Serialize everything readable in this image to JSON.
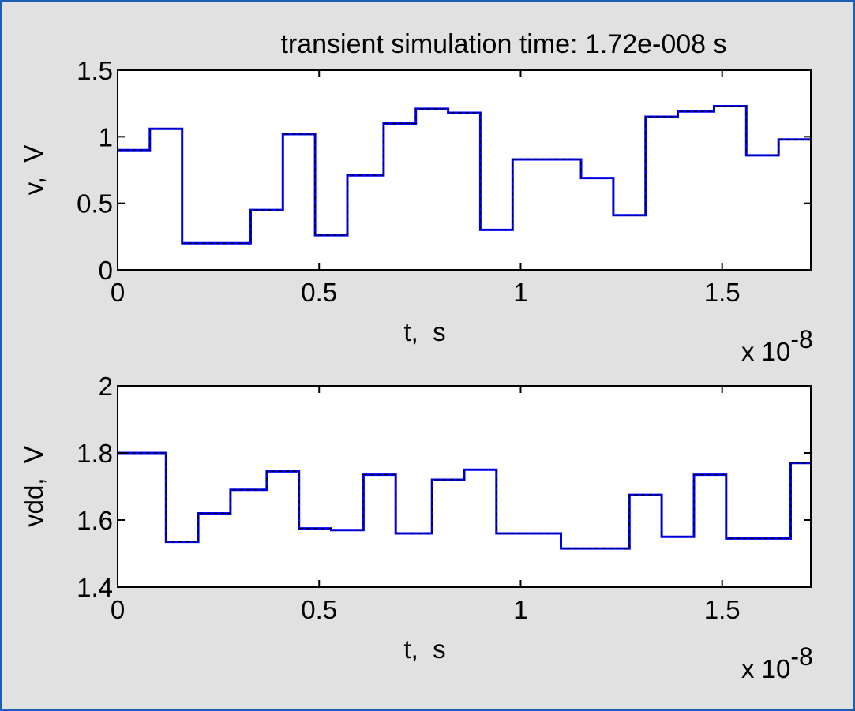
{
  "title": "transient simulation time: 1.72e-008 s",
  "colors": {
    "background": "#e1e1e1",
    "frame": "#1a5fb4",
    "trace_solid": "#0000ff",
    "trace_dashed": "#000000",
    "axes": "#000000"
  },
  "chart_data": [
    {
      "type": "line",
      "xlabel": "t,  s",
      "ylabel": "v,  V",
      "x_multiplier": {
        "base": "x 10",
        "exponent": "-8"
      },
      "xlim": [
        0,
        1.72
      ],
      "ylim": [
        0,
        1.5
      ],
      "xticks": [
        "0",
        "0.5",
        "1",
        "1.5"
      ],
      "xtick_values": [
        0,
        0.5,
        1,
        1.5
      ],
      "yticks": [
        "0",
        "0.5",
        "1",
        "1.5"
      ],
      "ytick_values": [
        0,
        0.5,
        1,
        1.5
      ],
      "grid": false,
      "segments": [
        {
          "t0": 0.0,
          "t1": 0.08,
          "v": 0.9
        },
        {
          "t0": 0.08,
          "t1": 0.16,
          "v": 1.06
        },
        {
          "t0": 0.16,
          "t1": 0.33,
          "v": 0.2
        },
        {
          "t0": 0.33,
          "t1": 0.41,
          "v": 0.45
        },
        {
          "t0": 0.41,
          "t1": 0.49,
          "v": 1.02
        },
        {
          "t0": 0.49,
          "t1": 0.57,
          "v": 0.26
        },
        {
          "t0": 0.57,
          "t1": 0.66,
          "v": 0.71
        },
        {
          "t0": 0.66,
          "t1": 0.74,
          "v": 1.1
        },
        {
          "t0": 0.74,
          "t1": 0.82,
          "v": 1.21
        },
        {
          "t0": 0.82,
          "t1": 0.9,
          "v": 1.18
        },
        {
          "t0": 0.9,
          "t1": 0.98,
          "v": 0.3
        },
        {
          "t0": 0.98,
          "t1": 1.15,
          "v": 0.83
        },
        {
          "t0": 1.15,
          "t1": 1.23,
          "v": 0.69
        },
        {
          "t0": 1.23,
          "t1": 1.31,
          "v": 0.41
        },
        {
          "t0": 1.31,
          "t1": 1.39,
          "v": 1.15
        },
        {
          "t0": 1.39,
          "t1": 1.48,
          "v": 1.19
        },
        {
          "t0": 1.48,
          "t1": 1.56,
          "v": 1.23
        },
        {
          "t0": 1.56,
          "t1": 1.64,
          "v": 0.86
        },
        {
          "t0": 1.64,
          "t1": 1.72,
          "v": 0.98
        }
      ]
    },
    {
      "type": "line",
      "xlabel": "t,  s",
      "ylabel": "vdd,  V",
      "x_multiplier": {
        "base": "x 10",
        "exponent": "-8"
      },
      "xlim": [
        0,
        1.72
      ],
      "ylim": [
        1.4,
        2.0
      ],
      "xticks": [
        "0",
        "0.5",
        "1",
        "1.5"
      ],
      "xtick_values": [
        0,
        0.5,
        1,
        1.5
      ],
      "yticks": [
        "1.4",
        "1.6",
        "1.8",
        "2"
      ],
      "ytick_values": [
        1.4,
        1.6,
        1.8,
        2.0
      ],
      "grid": false,
      "segments": [
        {
          "t0": 0.0,
          "t1": 0.12,
          "v": 1.8
        },
        {
          "t0": 0.12,
          "t1": 0.2,
          "v": 1.535
        },
        {
          "t0": 0.2,
          "t1": 0.28,
          "v": 1.62
        },
        {
          "t0": 0.28,
          "t1": 0.37,
          "v": 1.69
        },
        {
          "t0": 0.37,
          "t1": 0.45,
          "v": 1.745
        },
        {
          "t0": 0.45,
          "t1": 0.53,
          "v": 1.575
        },
        {
          "t0": 0.53,
          "t1": 0.61,
          "v": 1.57
        },
        {
          "t0": 0.61,
          "t1": 0.69,
          "v": 1.735
        },
        {
          "t0": 0.69,
          "t1": 0.78,
          "v": 1.56
        },
        {
          "t0": 0.78,
          "t1": 0.86,
          "v": 1.72
        },
        {
          "t0": 0.86,
          "t1": 0.94,
          "v": 1.75
        },
        {
          "t0": 0.94,
          "t1": 1.1,
          "v": 1.56
        },
        {
          "t0": 1.1,
          "t1": 1.27,
          "v": 1.515
        },
        {
          "t0": 1.27,
          "t1": 1.35,
          "v": 1.675
        },
        {
          "t0": 1.35,
          "t1": 1.43,
          "v": 1.55
        },
        {
          "t0": 1.43,
          "t1": 1.51,
          "v": 1.735
        },
        {
          "t0": 1.51,
          "t1": 1.67,
          "v": 1.545
        },
        {
          "t0": 1.67,
          "t1": 1.72,
          "v": 1.77
        }
      ]
    }
  ]
}
